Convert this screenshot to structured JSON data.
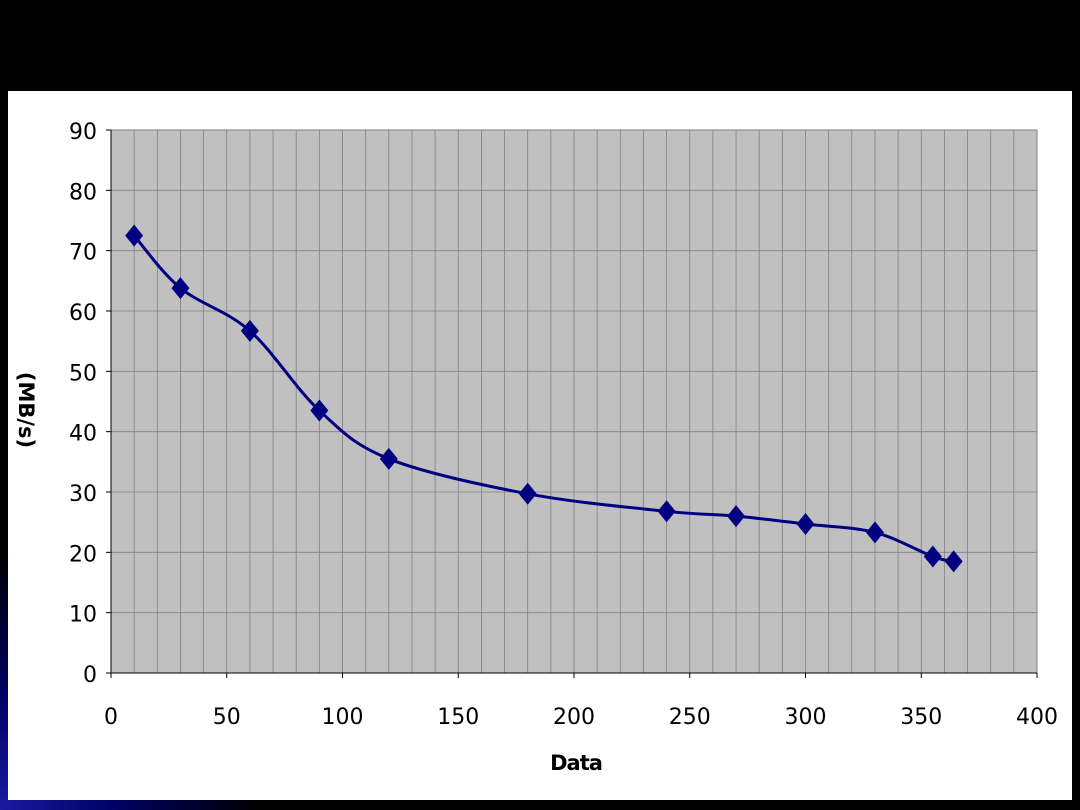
{
  "chart_data": {
    "type": "scatter",
    "x_label": "Data",
    "y_label": "(MB/s)",
    "x": [
      10,
      30,
      60,
      90,
      120,
      180,
      240,
      270,
      300,
      330,
      355,
      364
    ],
    "series": [
      {
        "color": "#000080",
        "values": [
          72.5,
          63.8,
          56.7,
          43.5,
          35.5,
          29.7,
          26.8,
          26,
          24.7,
          23.3,
          19.3,
          18.5
        ]
      }
    ],
    "xlim": [
      0,
      400
    ],
    "xticks": [
      0,
      50,
      100,
      150,
      200,
      250,
      300,
      350,
      400
    ],
    "xgrid": [
      10,
      20,
      30,
      40,
      50,
      60,
      70,
      80,
      90,
      100,
      110,
      120,
      130,
      140,
      150,
      160,
      170,
      180,
      190,
      200,
      210,
      220,
      230,
      240,
      250,
      260,
      270,
      280,
      290,
      300,
      310,
      320,
      330,
      340,
      350,
      360,
      370,
      380,
      390,
      400
    ],
    "ylim": [
      0,
      90
    ],
    "yticks": [
      0,
      10,
      20,
      30,
      40,
      50,
      60,
      70,
      80,
      90
    ],
    "grid": true,
    "plot_background": "#c0c0c0"
  }
}
